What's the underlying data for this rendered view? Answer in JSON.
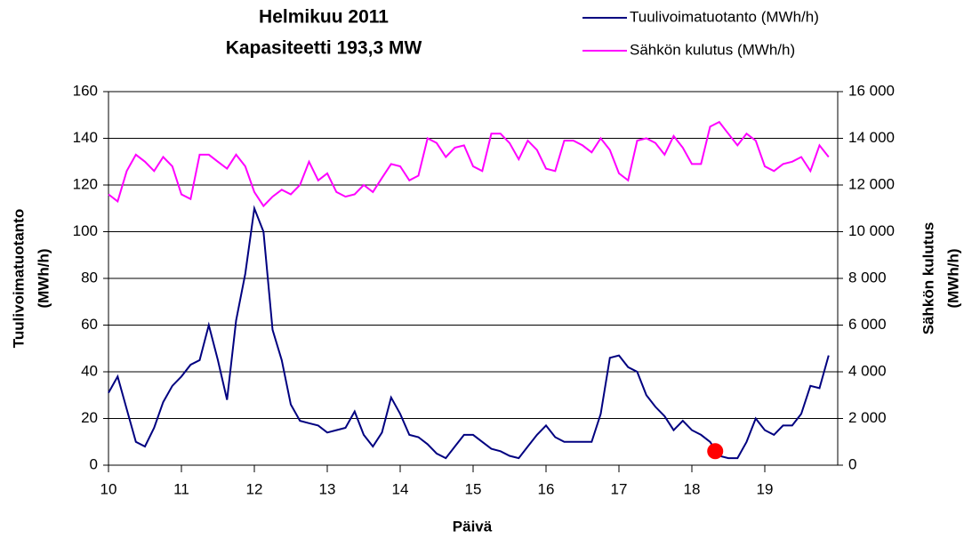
{
  "chart_data": {
    "type": "line",
    "title": [
      "Helmikuu 2011",
      "Kapasiteetti 193,3 MW"
    ],
    "xlabel": "Päivä",
    "ylabel": [
      "Tuulivoimatuotanto",
      "(MWh/h)"
    ],
    "y2label": [
      "Sähkön kulutus",
      "(MWh/h)"
    ],
    "xlim": [
      10,
      20
    ],
    "xticks": [
      10,
      11,
      12,
      13,
      14,
      15,
      16,
      17,
      18,
      19
    ],
    "ylim": [
      0,
      160
    ],
    "yticks": [
      0,
      20,
      40,
      60,
      80,
      100,
      120,
      140,
      160
    ],
    "y2lim": [
      0,
      16000
    ],
    "y2ticks": [
      0,
      {
        "value": 2000,
        "label": "2 000"
      },
      {
        "value": 4000,
        "label": "4 000"
      },
      {
        "value": 6000,
        "label": "6 000"
      },
      {
        "value": 8000,
        "label": "8 000"
      },
      {
        "value": 10000,
        "label": "10 000"
      },
      {
        "value": 12000,
        "label": "12 000"
      },
      {
        "value": 14000,
        "label": "14 000"
      },
      {
        "value": 16000,
        "label": "16 000"
      }
    ],
    "grid": true,
    "x": [
      10,
      10.125,
      10.25,
      10.375,
      10.5,
      10.625,
      10.75,
      10.875,
      11,
      11.125,
      11.25,
      11.375,
      11.5,
      11.625,
      11.75,
      11.875,
      12,
      12.125,
      12.25,
      12.375,
      12.5,
      12.625,
      12.75,
      12.875,
      13,
      13.125,
      13.25,
      13.375,
      13.5,
      13.625,
      13.75,
      13.875,
      14,
      14.125,
      14.25,
      14.375,
      14.5,
      14.625,
      14.75,
      14.875,
      15,
      15.125,
      15.25,
      15.375,
      15.5,
      15.625,
      15.75,
      15.875,
      16,
      16.125,
      16.25,
      16.375,
      16.5,
      16.625,
      16.75,
      16.875,
      17,
      17.125,
      17.25,
      17.375,
      17.5,
      17.625,
      17.75,
      17.875,
      18,
      18.125,
      18.25,
      18.375,
      18.5,
      18.625,
      18.75,
      18.875,
      19,
      19.125,
      19.25,
      19.375,
      19.5,
      19.625,
      19.75,
      19.875
    ],
    "series": [
      {
        "name": "Tuulivoimatuotanto (MWh/h)",
        "color": "#000080",
        "values": [
          31,
          38,
          24,
          10,
          8,
          16,
          27,
          34,
          38,
          43,
          45,
          60,
          45,
          28,
          62,
          82,
          110,
          100,
          58,
          45,
          26,
          19,
          18,
          17,
          14,
          15,
          16,
          23,
          13,
          8,
          14,
          29,
          22,
          13,
          12,
          9,
          5,
          3,
          8,
          13,
          13,
          10,
          7,
          6,
          4,
          3,
          8,
          13,
          17,
          12,
          10,
          10,
          10,
          10,
          22,
          46,
          47,
          42,
          40,
          30,
          25,
          21,
          15,
          19,
          15,
          13,
          10,
          4,
          3,
          3,
          10,
          20,
          15,
          13,
          17,
          17,
          22,
          34,
          33,
          47
        ]
      },
      {
        "name": "Sähkön kulutus (MWh/h)",
        "color": "#ff00ff",
        "axis": "y2",
        "values": [
          11600,
          11300,
          12600,
          13300,
          13000,
          12600,
          13200,
          12800,
          11600,
          11400,
          13300,
          13300,
          13000,
          12700,
          13300,
          12800,
          11700,
          11100,
          11500,
          11800,
          11600,
          12000,
          13000,
          12200,
          12500,
          11700,
          11500,
          11600,
          12000,
          11700,
          12300,
          12900,
          12800,
          12200,
          12400,
          14000,
          13800,
          13200,
          13600,
          13700,
          12800,
          12600,
          14200,
          14200,
          13800,
          13100,
          13900,
          13500,
          12700,
          12600,
          13900,
          13900,
          13700,
          13400,
          14000,
          13500,
          12500,
          12200,
          13900,
          14000,
          13800,
          13300,
          14100,
          13600,
          12900,
          12900,
          14500,
          14700,
          14200,
          13700,
          14200,
          13900,
          12800,
          12600,
          12900,
          13000,
          13200,
          12600,
          13700,
          13200
        ]
      }
    ],
    "highlight": {
      "x": 18.32,
      "y": 6,
      "color": "#ff0000"
    }
  }
}
